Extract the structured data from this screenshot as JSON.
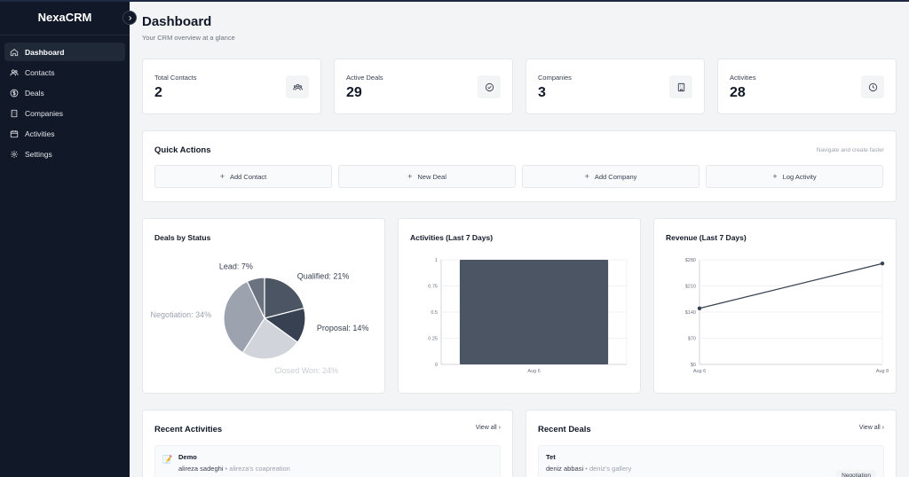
{
  "app": {
    "brand": "NexaCRM"
  },
  "sidebar": {
    "items": [
      {
        "label": "Dashboard",
        "icon": "home-icon",
        "active": true
      },
      {
        "label": "Contacts",
        "icon": "users-icon",
        "active": false
      },
      {
        "label": "Deals",
        "icon": "dollar-icon",
        "active": false
      },
      {
        "label": "Companies",
        "icon": "building-icon",
        "active": false
      },
      {
        "label": "Activities",
        "icon": "calendar-icon",
        "active": false
      },
      {
        "label": "Settings",
        "icon": "gear-icon",
        "active": false
      }
    ]
  },
  "header": {
    "title": "Dashboard",
    "subtitle": "Your CRM overview at a glance"
  },
  "stats": [
    {
      "label": "Total Contacts",
      "value": "2",
      "icon": "users-icon"
    },
    {
      "label": "Active Deals",
      "value": "29",
      "icon": "check-circle-icon"
    },
    {
      "label": "Companies",
      "value": "3",
      "icon": "building-icon"
    },
    {
      "label": "Activities",
      "value": "28",
      "icon": "clock-icon"
    }
  ],
  "quick_actions": {
    "title": "Quick Actions",
    "hint": "Navigate and create faster",
    "buttons": [
      "Add Contact",
      "New Deal",
      "Add Company",
      "Log Activity"
    ]
  },
  "chart_data": [
    {
      "type": "pie",
      "title": "Deals by Status",
      "slices": [
        {
          "label": "Qualified",
          "value": 21,
          "color": "#4b5563"
        },
        {
          "label": "Proposal",
          "value": 14,
          "color": "#374151"
        },
        {
          "label": "Closed Won",
          "value": 24,
          "color": "#d1d5db"
        },
        {
          "label": "Negotiation",
          "value": 34,
          "color": "#9ca3af"
        },
        {
          "label": "Lead",
          "value": 7,
          "color": "#6b7280"
        }
      ],
      "slice_labels": [
        "Qualified: 21%",
        "Proposal: 14%",
        "Closed Won: 24%",
        "Negotiation: 34%",
        "Lead: 7%"
      ]
    },
    {
      "type": "bar",
      "title": "Activities (Last 7 Days)",
      "categories": [
        "Aug 6"
      ],
      "values": [
        1
      ],
      "ylim": [
        0,
        1
      ],
      "yticks": [
        "0",
        "0.25",
        "0.5",
        "0.75",
        "1"
      ],
      "color": "#4b5563"
    },
    {
      "type": "line",
      "title": "Revenue (Last 7 Days)",
      "x": [
        "Aug 6",
        "Aug 8"
      ],
      "values": [
        150,
        270
      ],
      "ylim": [
        0,
        280
      ],
      "yticks": [
        "$0",
        "$70",
        "$140",
        "$210",
        "$280"
      ],
      "color": "#374151"
    }
  ],
  "recent_activities": {
    "title": "Recent Activities",
    "view_all": "View all",
    "items": [
      {
        "icon": "note-icon",
        "title": "Demo",
        "person": "alireza sadeghi",
        "separator": "•",
        "company": "alireza's coapreation"
      }
    ]
  },
  "recent_deals": {
    "title": "Recent Deals",
    "view_all": "View all",
    "items": [
      {
        "title": "Tet",
        "person": "deniz abbasi",
        "separator": "•",
        "company": "deniz's gallery",
        "status": "Negotiation"
      }
    ]
  }
}
